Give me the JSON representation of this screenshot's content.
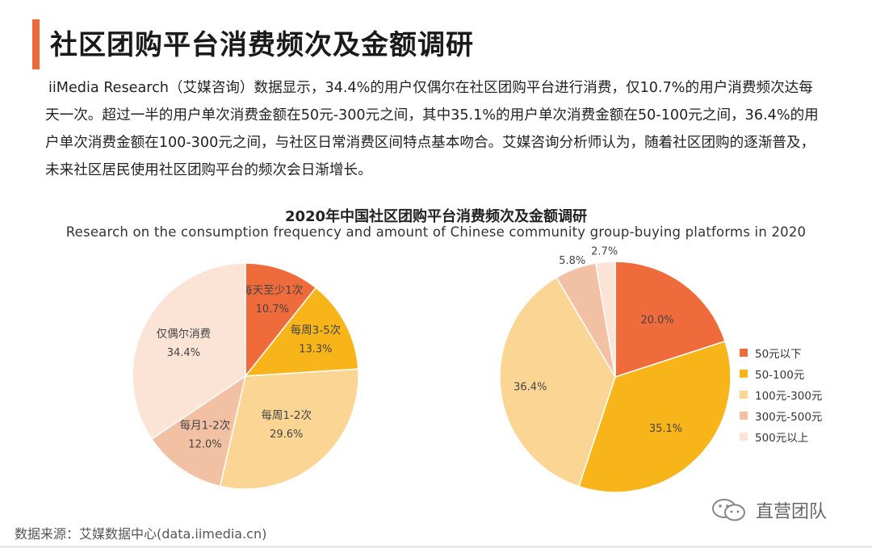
{
  "header": {
    "title": "社区团购平台消费频次及金额调研",
    "intro": "iiMedia Research（艾媒咨询）数据显示，34.4%的用户仅偶尔在社区团购平台进行消费，仅10.7%的用户消费频次达每天一次。超过一半的用户单次消费金额在50元-300元之间，其中35.1%的用户单次消费金额在50-100元之间，36.4%的用户单次消费金额在100-300元之间，与社区日常消费区间特点基本吻合。艾媒咨询分析师认为，随着社区团购的逐渐普及，未来社区居民使用社区团购平台的频次会日渐增长。"
  },
  "chart_header": {
    "title": "2020年中国社区团购平台消费频次及金额调研",
    "subtitle": "Research on the consumption frequency and amount of Chinese community group-buying platforms in 2020"
  },
  "chart_data": [
    {
      "type": "pie",
      "slices": [
        {
          "label": "每天至少1次",
          "value": 10.7,
          "display": "10.7%",
          "color": "#ef6b3c"
        },
        {
          "label": "每周3-5次",
          "value": 13.3,
          "display": "13.3%",
          "color": "#f7b519"
        },
        {
          "label": "每周1-2次",
          "value": 29.6,
          "display": "29.6%",
          "color": "#fad594"
        },
        {
          "label": "每月1-2次",
          "value": 12.0,
          "display": "12.0%",
          "color": "#f2c1a4"
        },
        {
          "label": "仅偶尔消费",
          "value": 34.4,
          "display": "34.4%",
          "color": "#fbe3d6"
        }
      ]
    },
    {
      "type": "pie",
      "slices": [
        {
          "label": "50元以下",
          "value": 20.0,
          "display": "20.0%",
          "color": "#ef6b3c"
        },
        {
          "label": "50-100元",
          "value": 35.1,
          "display": "35.1%",
          "color": "#f7b519"
        },
        {
          "label": "100元-300元",
          "value": 36.4,
          "display": "36.4%",
          "color": "#fad594"
        },
        {
          "label": "300元-500元",
          "value": 5.8,
          "display": "5.8%",
          "color": "#f2c1a4"
        },
        {
          "label": "500元以上",
          "value": 2.7,
          "display": "2.7%",
          "color": "#fbe3d6"
        }
      ],
      "legend_position": "right"
    }
  ],
  "legend": [
    {
      "label": "50元以下",
      "color": "#ef6b3c"
    },
    {
      "label": "50-100元",
      "color": "#f7b519"
    },
    {
      "label": "100元-300元",
      "color": "#fad594"
    },
    {
      "label": "300元-500元",
      "color": "#f2c1a4"
    },
    {
      "label": "500元以上",
      "color": "#fbe3d6"
    }
  ],
  "footer": {
    "source": "数据来源：艾媒数据中心(data.iimedia.cn)",
    "watermark": "直营团队",
    "watermark_icon": "wechat-icon"
  }
}
